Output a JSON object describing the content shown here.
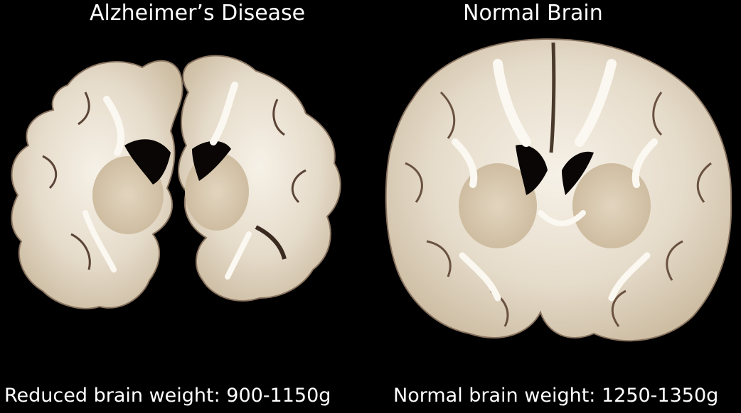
{
  "panels": [
    {
      "title": "Alzheimer’s Disease",
      "caption": "Reduced brain weight: 900-1150g"
    },
    {
      "title": "Normal Brain",
      "caption": "Normal brain weight: 1250-1350g"
    }
  ],
  "colors": {
    "background": "#000000",
    "tissue": "#e6dccb",
    "white_matter": "#f3ede2",
    "gray_matter": "#d6c7b0",
    "shadow": "#5a4436",
    "text": "#ffffff"
  }
}
